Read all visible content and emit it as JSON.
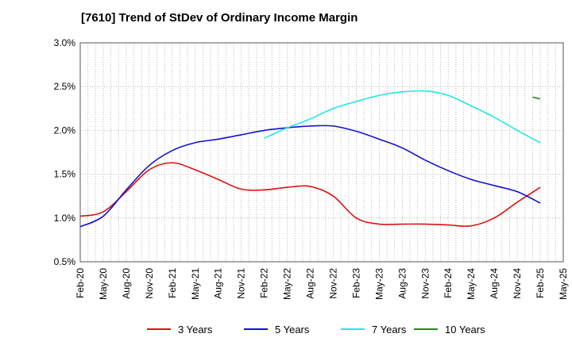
{
  "chart_data": {
    "type": "line",
    "title": "[7610]  Trend of StDev of Ordinary Income Margin",
    "xlabel": "",
    "ylabel": "",
    "x_tick_labels": [
      "Feb-20",
      "May-20",
      "Aug-20",
      "Nov-20",
      "Feb-21",
      "May-21",
      "Aug-21",
      "Nov-21",
      "Feb-22",
      "May-22",
      "Aug-22",
      "Nov-22",
      "Feb-23",
      "May-23",
      "Aug-23",
      "Nov-23",
      "Feb-24",
      "May-24",
      "Aug-24",
      "Nov-24",
      "Feb-25",
      "May-25"
    ],
    "y_tick_labels": [
      "0.5%",
      "1.0%",
      "1.5%",
      "2.0%",
      "2.5%",
      "3.0%"
    ],
    "ylim": [
      0.5,
      3.0
    ],
    "grid": true,
    "legend_position": "bottom",
    "series": [
      {
        "name": "3 Years",
        "color": "#dd1111",
        "points": [
          [
            "Feb-20",
            1.02
          ],
          [
            "May-20",
            1.07
          ],
          [
            "Aug-20",
            1.3
          ],
          [
            "Nov-20",
            1.55
          ],
          [
            "Feb-21",
            1.63
          ],
          [
            "May-21",
            1.55
          ],
          [
            "Aug-21",
            1.44
          ],
          [
            "Nov-21",
            1.33
          ],
          [
            "Feb-22",
            1.32
          ],
          [
            "May-22",
            1.35
          ],
          [
            "Aug-22",
            1.36
          ],
          [
            "Nov-22",
            1.25
          ],
          [
            "Feb-23",
            1.0
          ],
          [
            "May-23",
            0.93
          ],
          [
            "Aug-23",
            0.93
          ],
          [
            "Nov-23",
            0.93
          ],
          [
            "Feb-24",
            0.92
          ],
          [
            "May-24",
            0.91
          ],
          [
            "Aug-24",
            1.0
          ],
          [
            "Nov-24",
            1.18
          ],
          [
            "Feb-25",
            1.35
          ]
        ]
      },
      {
        "name": "5 Years",
        "color": "#1111cc",
        "points": [
          [
            "Feb-20",
            0.9
          ],
          [
            "May-20",
            1.02
          ],
          [
            "Aug-20",
            1.32
          ],
          [
            "Nov-20",
            1.6
          ],
          [
            "Feb-21",
            1.77
          ],
          [
            "May-21",
            1.86
          ],
          [
            "Aug-21",
            1.9
          ],
          [
            "Nov-21",
            1.95
          ],
          [
            "Feb-22",
            2.0
          ],
          [
            "May-22",
            2.03
          ],
          [
            "Aug-22",
            2.05
          ],
          [
            "Nov-22",
            2.05
          ],
          [
            "Feb-23",
            1.99
          ],
          [
            "May-23",
            1.9
          ],
          [
            "Aug-23",
            1.8
          ],
          [
            "Nov-23",
            1.66
          ],
          [
            "Feb-24",
            1.54
          ],
          [
            "May-24",
            1.44
          ],
          [
            "Aug-24",
            1.37
          ],
          [
            "Nov-24",
            1.3
          ],
          [
            "Feb-25",
            1.17
          ]
        ]
      },
      {
        "name": "7 Years",
        "color": "#22e6e6",
        "points": [
          [
            "Feb-22",
            1.91
          ],
          [
            "May-22",
            2.03
          ],
          [
            "Aug-22",
            2.13
          ],
          [
            "Nov-22",
            2.25
          ],
          [
            "Feb-23",
            2.33
          ],
          [
            "May-23",
            2.4
          ],
          [
            "Aug-23",
            2.44
          ],
          [
            "Nov-23",
            2.45
          ],
          [
            "Feb-24",
            2.4
          ],
          [
            "May-24",
            2.28
          ],
          [
            "Aug-24",
            2.15
          ],
          [
            "Nov-24",
            2.0
          ],
          [
            "Feb-25",
            1.86
          ]
        ]
      },
      {
        "name": "10 Years",
        "color": "#228822",
        "points": [
          [
            "Jan-25",
            2.38
          ],
          [
            "Feb-25",
            2.36
          ]
        ]
      }
    ]
  }
}
